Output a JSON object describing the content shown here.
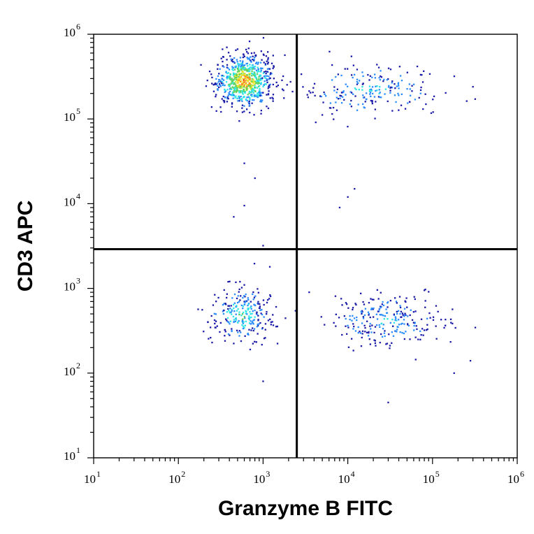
{
  "chart_data": {
    "type": "scatter",
    "title": "",
    "xlabel": "Granzyme B FITC",
    "ylabel": "CD3 APC",
    "x_scale": "log",
    "y_scale": "log",
    "xlim": [
      10,
      1000000
    ],
    "ylim": [
      10,
      1000000
    ],
    "x_ticks": [
      {
        "base": "10",
        "exp": "1"
      },
      {
        "base": "10",
        "exp": "2"
      },
      {
        "base": "10",
        "exp": "3"
      },
      {
        "base": "10",
        "exp": "4"
      },
      {
        "base": "10",
        "exp": "5"
      },
      {
        "base": "10",
        "exp": "6"
      }
    ],
    "y_ticks": [
      {
        "base": "10",
        "exp": "1"
      },
      {
        "base": "10",
        "exp": "2"
      },
      {
        "base": "10",
        "exp": "3"
      },
      {
        "base": "10",
        "exp": "4"
      },
      {
        "base": "10",
        "exp": "5"
      },
      {
        "base": "10",
        "exp": "6"
      }
    ],
    "gate_lines": {
      "x": 2500,
      "y": 2900
    },
    "density_colors": [
      "#1a1aa8",
      "#2a8cff",
      "#2ee6e6",
      "#5fd35f",
      "#e6e62e",
      "#ff8c1a",
      "#e61a1a"
    ],
    "populations": [
      {
        "name_hidden": true,
        "x_center": 600,
        "y_center": 280000,
        "x_spread_decades": 0.17,
        "y_spread_decades": 0.15,
        "count": 720,
        "peak_color_index": 6
      },
      {
        "name_hidden": true,
        "x_center": 18000,
        "y_center": 220000,
        "x_spread_decades": 0.42,
        "y_spread_decades": 0.16,
        "count": 210,
        "peak_color_index": 2
      },
      {
        "name_hidden": true,
        "x_center": 550,
        "y_center": 480,
        "x_spread_decades": 0.18,
        "y_spread_decades": 0.16,
        "count": 260,
        "peak_color_index": 3
      },
      {
        "name_hidden": true,
        "x_center": 28000,
        "y_center": 420,
        "x_spread_decades": 0.32,
        "y_spread_decades": 0.15,
        "count": 250,
        "peak_color_index": 2
      }
    ],
    "sparse_points": [
      [
        800,
        20000
      ],
      [
        600,
        30000
      ],
      [
        600,
        9500
      ],
      [
        450,
        7000
      ],
      [
        12000,
        15000
      ],
      [
        10000,
        12000
      ],
      [
        8000,
        9000
      ],
      [
        1000,
        3200
      ],
      [
        30000,
        45
      ],
      [
        35000,
        10
      ],
      [
        1000,
        80
      ],
      [
        180000,
        100
      ],
      [
        280000,
        140
      ],
      [
        80000,
        950
      ],
      [
        1200,
        1800
      ],
      [
        600,
        1100
      ],
      [
        3500,
        900
      ],
      [
        250,
        230
      ],
      [
        300000,
        240000
      ]
    ]
  }
}
